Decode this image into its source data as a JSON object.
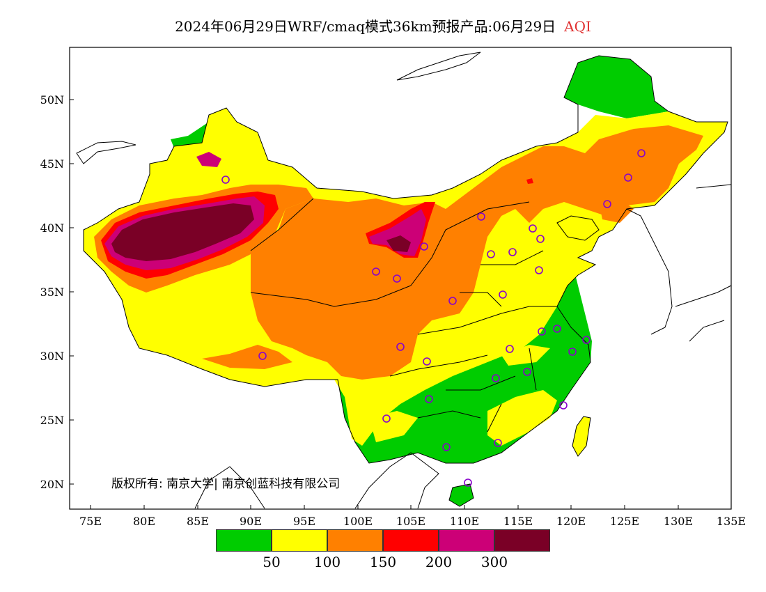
{
  "title": {
    "main": "2024年06月29日WRF/cmaq模式36km预报产品:06月29日",
    "variable": "AQI"
  },
  "axes": {
    "lat_labels": [
      "50N",
      "45N",
      "40N",
      "35N",
      "30N",
      "25N",
      "20N"
    ],
    "lon_labels": [
      "75E",
      "80E",
      "85E",
      "90E",
      "95E",
      "100E",
      "105E",
      "110E",
      "115E",
      "120E",
      "125E",
      "130E",
      "135E"
    ]
  },
  "legend": {
    "colors": [
      "#00cc00",
      "#ffff00",
      "#ff8000",
      "#ff0000",
      "#cc0077",
      "#7a0026"
    ],
    "labels": [
      "50",
      "100",
      "150",
      "200",
      "300"
    ]
  },
  "copyright": "版权所有: 南京大学| 南京创蓝科技有限公司",
  "colors": {
    "circle": "#8800cc",
    "border": "#000000"
  }
}
